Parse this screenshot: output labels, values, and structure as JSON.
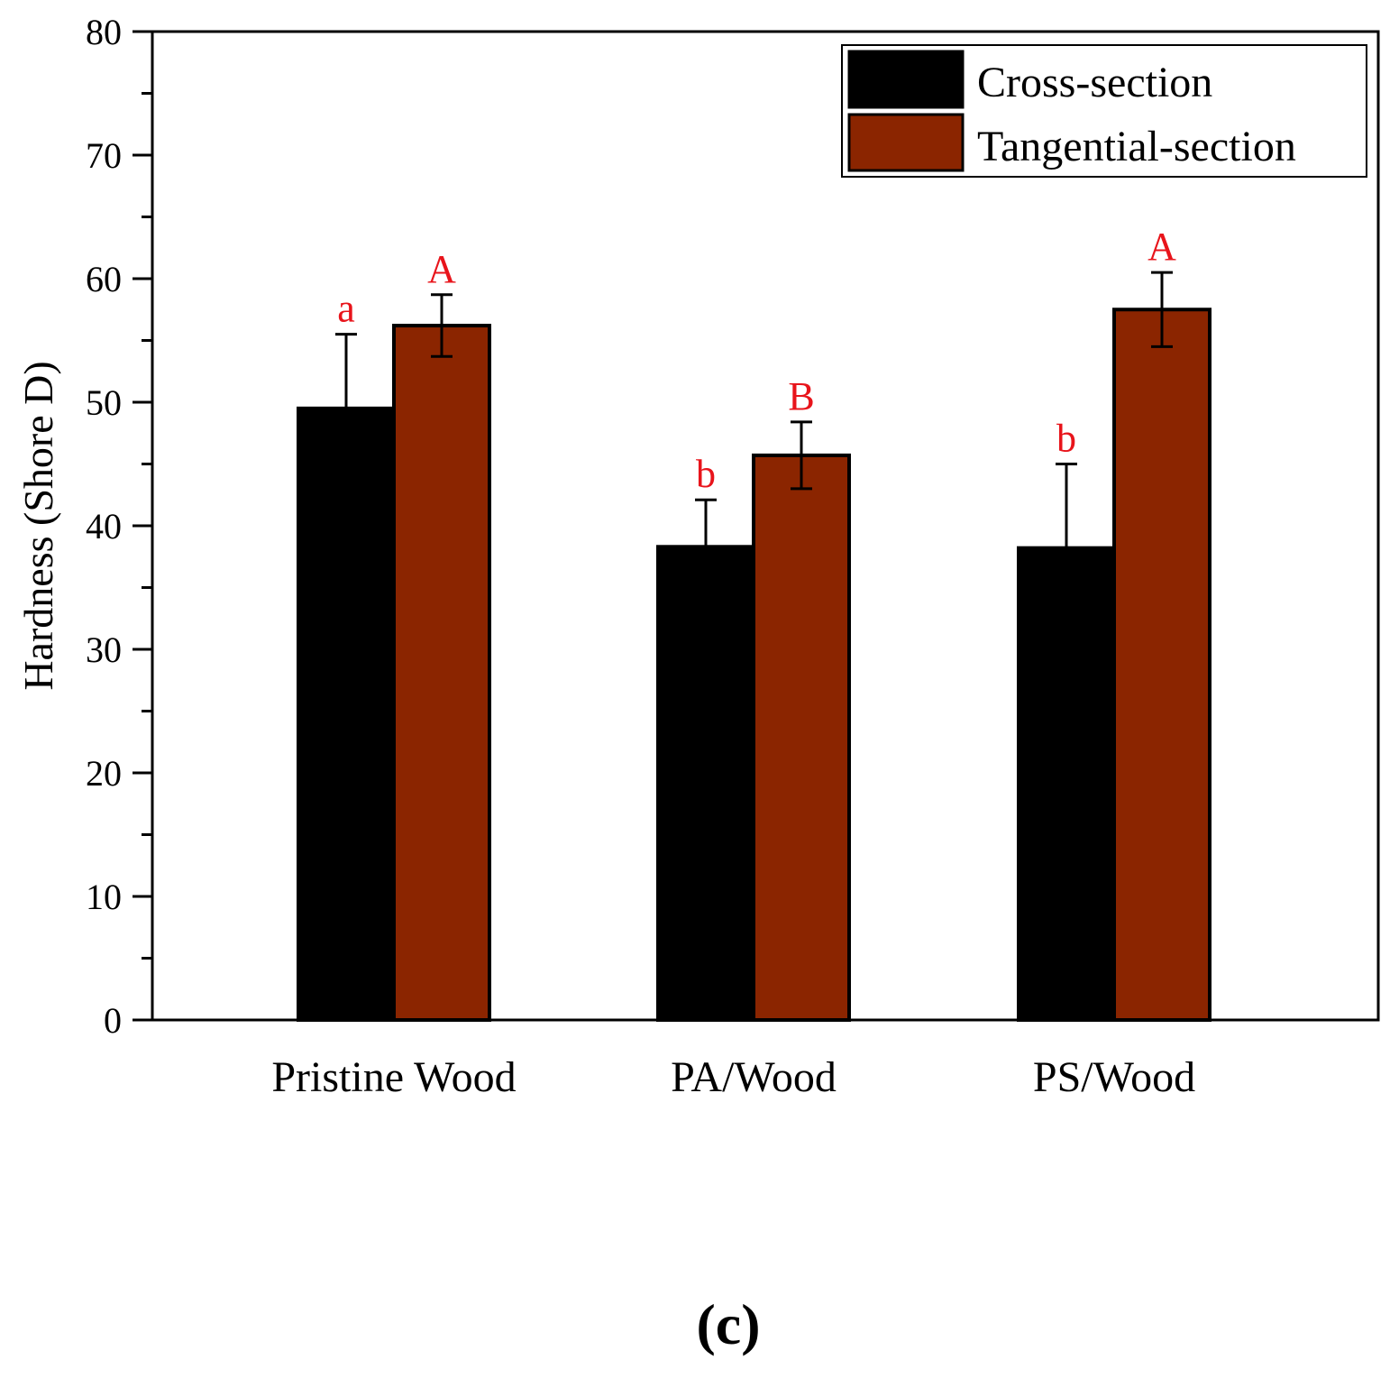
{
  "chart_data": {
    "type": "bar",
    "title": "",
    "xlabel": "",
    "ylabel": "Hardness (Shore D)",
    "ylim": [
      0,
      80
    ],
    "yticks": [
      0,
      10,
      20,
      30,
      40,
      50,
      60,
      70,
      80
    ],
    "categories": [
      "Pristine Wood",
      "PA/Wood",
      "PS/Wood"
    ],
    "series": [
      {
        "name": "Cross-section",
        "color": "#000000",
        "values": [
          49.5,
          38.3,
          38.2
        ],
        "errors": [
          6.0,
          3.8,
          6.8
        ],
        "significance": [
          "a",
          "b",
          "b"
        ]
      },
      {
        "name": "Tangential-section",
        "color": "#8B2500",
        "values": [
          56.2,
          45.7,
          57.5
        ],
        "errors": [
          2.5,
          2.7,
          3.0
        ],
        "significance": [
          "A",
          "B",
          "A"
        ]
      }
    ],
    "significance_color": "#E8141B",
    "legend_position": "top-right",
    "panel_label": "(c)"
  }
}
